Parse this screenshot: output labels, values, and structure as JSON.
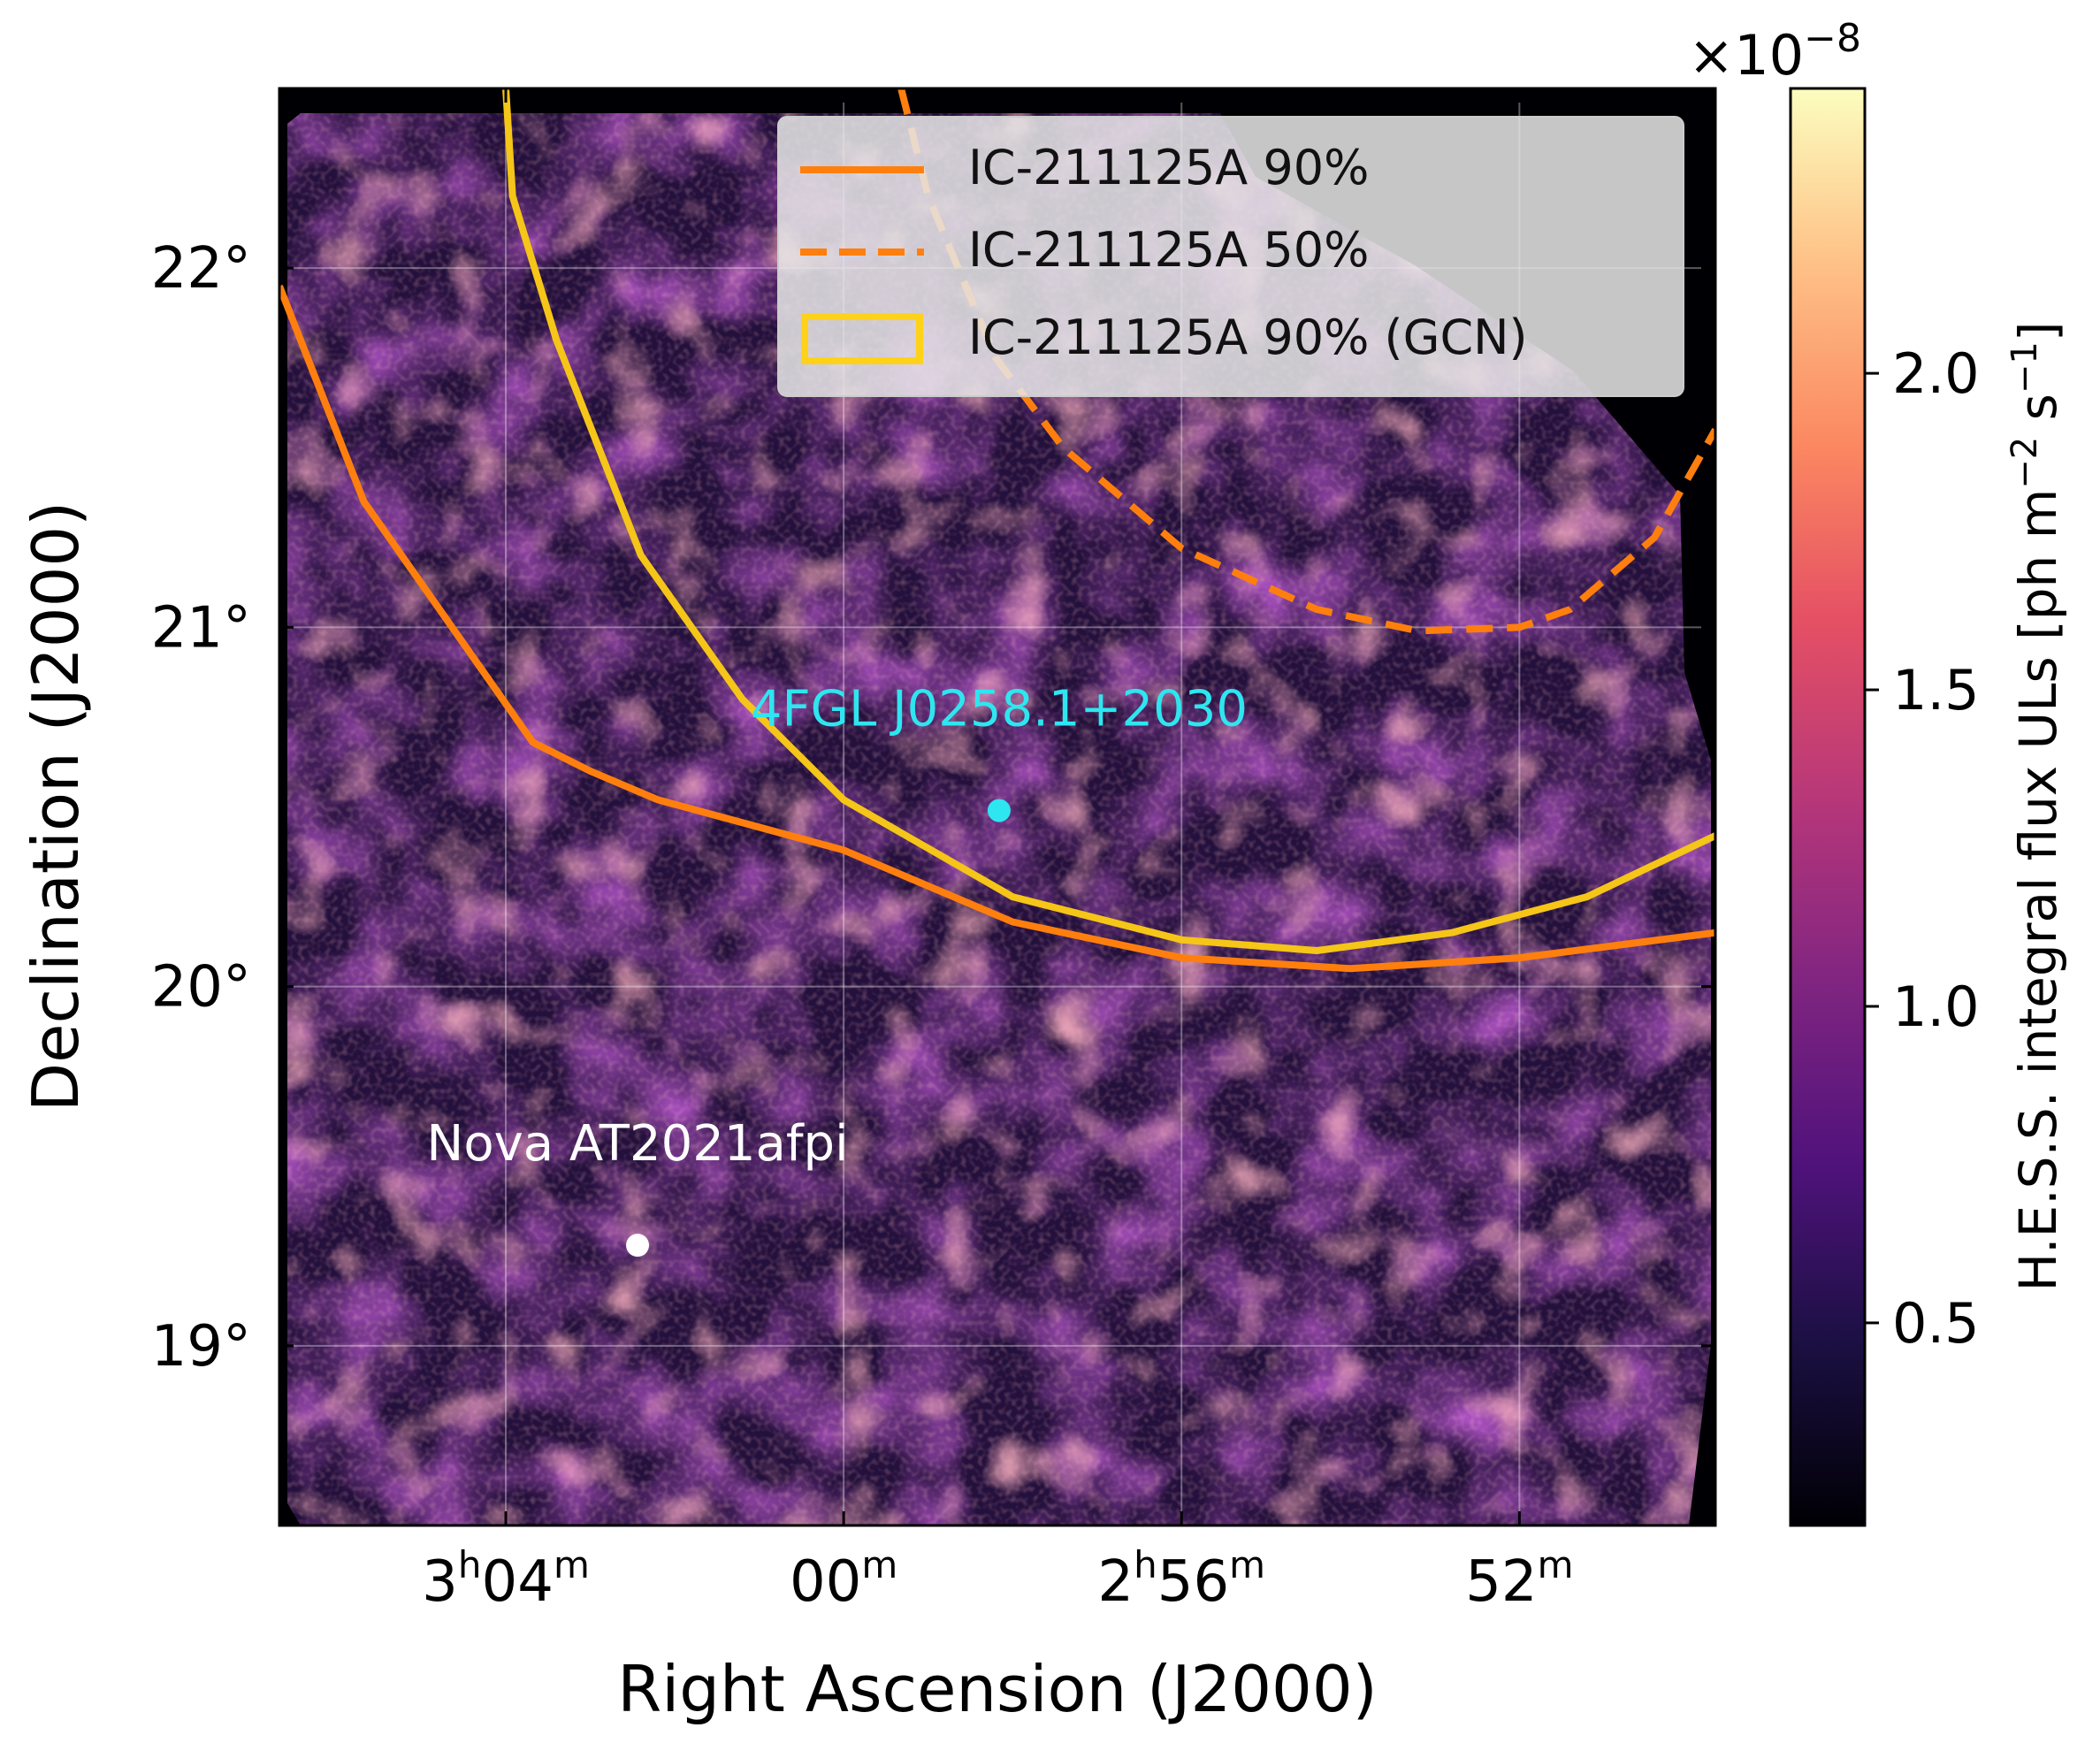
{
  "chart_data": {
    "type": "heatmap",
    "xlabel": "Right Ascension (J2000)",
    "ylabel": "Declination (J2000)",
    "x_ticks": [
      {
        "value": 46.0,
        "label_main": "3",
        "label_sup1": "h",
        "label_mid": "04",
        "label_sup2": "m"
      },
      {
        "value": 45.0,
        "label_main": "00",
        "label_sup1": "m",
        "label_mid": "",
        "label_sup2": ""
      },
      {
        "value": 44.0,
        "label_main": "2",
        "label_sup1": "h",
        "label_mid": "56",
        "label_sup2": "m"
      },
      {
        "value": 43.0,
        "label_main": "52",
        "label_sup1": "m",
        "label_mid": "",
        "label_sup2": ""
      }
    ],
    "y_ticks": [
      {
        "value": 22,
        "label": "22°"
      },
      {
        "value": 21,
        "label": "21°"
      },
      {
        "value": 20,
        "label": "20°"
      },
      {
        "value": 19,
        "label": "19°"
      }
    ],
    "xlim": [
      46.67,
      42.42
    ],
    "ylim": [
      18.5,
      22.5
    ],
    "grid": true,
    "colorbar": {
      "label_main": "H.E.S.S. integral flux ULs [ph m",
      "label_sup1": "−2",
      "label_mid": " s",
      "label_sup2": "−1",
      "label_end": "]",
      "scale_base": "×10",
      "scale_exp": "−8",
      "range": [
        0.18,
        2.45
      ],
      "ticks": [
        {
          "value": 0.5,
          "label": "0.5"
        },
        {
          "value": 1.0,
          "label": "1.0"
        },
        {
          "value": 1.5,
          "label": "1.5"
        },
        {
          "value": 2.0,
          "label": "2.0"
        }
      ],
      "colormap": "magma"
    },
    "legend": {
      "placement": "upper-right",
      "entries": [
        {
          "label": "IC-211125A 90%",
          "style": "solid",
          "color": "#ff7f0e"
        },
        {
          "label": "IC-211125A 50%",
          "style": "dashed",
          "color": "#ff7f0e"
        },
        {
          "label": "IC-211125A 90% (GCN)",
          "style": "box",
          "color": "#ffd21a"
        }
      ]
    },
    "series": [
      {
        "label": "IC-211125A 90%",
        "style": "solid",
        "color": "#ff7f0e",
        "points": [
          [
            46.67,
            21.95
          ],
          [
            46.42,
            21.35
          ],
          [
            45.92,
            20.68
          ],
          [
            45.75,
            20.6
          ],
          [
            45.55,
            20.52
          ],
          [
            45.0,
            20.38
          ],
          [
            44.5,
            20.18
          ],
          [
            44.0,
            20.08
          ],
          [
            43.5,
            20.05
          ],
          [
            43.0,
            20.08
          ],
          [
            42.42,
            20.15
          ]
        ]
      },
      {
        "label": "IC-211125A 50%",
        "style": "dashed",
        "color": "#ff7f0e",
        "points": [
          [
            44.83,
            22.5
          ],
          [
            44.75,
            22.2
          ],
          [
            44.55,
            21.75
          ],
          [
            44.35,
            21.5
          ],
          [
            44.0,
            21.22
          ],
          [
            43.6,
            21.05
          ],
          [
            43.3,
            20.99
          ],
          [
            43.0,
            21.0
          ],
          [
            42.85,
            21.05
          ],
          [
            42.6,
            21.25
          ],
          [
            42.42,
            21.55
          ]
        ]
      },
      {
        "label": "IC-211125A 90% (GCN)",
        "style": "solid",
        "color": "#f5c518",
        "points": [
          [
            46.0,
            22.5
          ],
          [
            45.98,
            22.2
          ],
          [
            45.85,
            21.8
          ],
          [
            45.6,
            21.2
          ],
          [
            45.3,
            20.8
          ],
          [
            45.0,
            20.52
          ],
          [
            44.5,
            20.25
          ],
          [
            44.0,
            20.13
          ],
          [
            43.6,
            20.1
          ],
          [
            43.2,
            20.15
          ],
          [
            42.8,
            20.25
          ],
          [
            42.42,
            20.42
          ]
        ]
      }
    ],
    "annotations": [
      {
        "label": "4FGL J0258.1+2030",
        "ra": 44.54,
        "dec": 20.49,
        "color": "#2ee6f0"
      },
      {
        "label": "Nova AT2021afpi",
        "ra": 45.61,
        "dec": 19.28,
        "color": "#ffffff"
      }
    ]
  }
}
